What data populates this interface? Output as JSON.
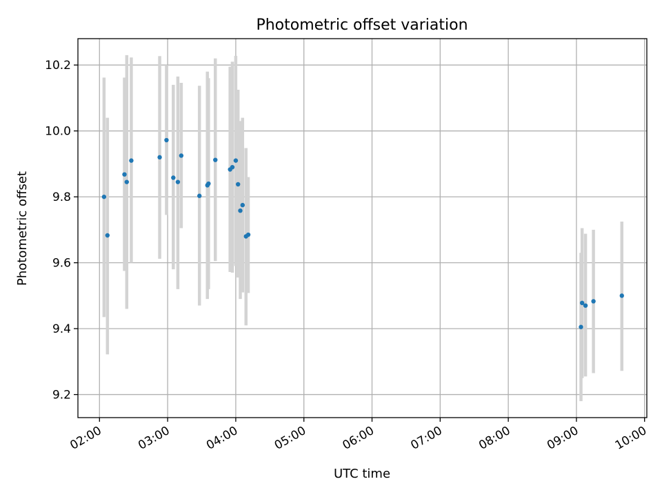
{
  "chart_data": {
    "type": "scatter",
    "title": "Photometric offset variation",
    "xlabel": "UTC time",
    "ylabel": "Photometric offset",
    "xlim": [
      "01:41",
      "10:02"
    ],
    "ylim": [
      9.13,
      10.28
    ],
    "x_ticks": [
      "02:00",
      "03:00",
      "04:00",
      "05:00",
      "06:00",
      "07:00",
      "08:00",
      "09:00",
      "10:00"
    ],
    "y_ticks": [
      "9.2",
      "9.4",
      "9.6",
      "9.8",
      "10.0",
      "10.2"
    ],
    "grid": true,
    "legend": "none",
    "marker_color": "#1f77b4",
    "errorbar_color": "#d3d3d3",
    "points": [
      {
        "t": "02:04",
        "y": 9.8,
        "lo": 9.435,
        "hi": 10.162
      },
      {
        "t": "02:07",
        "y": 9.683,
        "lo": 9.322,
        "hi": 10.04
      },
      {
        "t": "02:22",
        "y": 9.868,
        "lo": 9.575,
        "hi": 10.162
      },
      {
        "t": "02:24",
        "y": 9.845,
        "lo": 9.46,
        "hi": 10.23
      },
      {
        "t": "02:28",
        "y": 9.91,
        "lo": 9.6,
        "hi": 10.223
      },
      {
        "t": "02:53",
        "y": 9.92,
        "lo": 9.612,
        "hi": 10.227
      },
      {
        "t": "02:59",
        "y": 9.972,
        "lo": 9.745,
        "hi": 10.2
      },
      {
        "t": "03:05",
        "y": 9.858,
        "lo": 9.58,
        "hi": 10.14
      },
      {
        "t": "03:09",
        "y": 9.845,
        "lo": 9.52,
        "hi": 10.165
      },
      {
        "t": "03:12",
        "y": 9.925,
        "lo": 9.705,
        "hi": 10.146
      },
      {
        "t": "03:28",
        "y": 9.803,
        "lo": 9.47,
        "hi": 10.137
      },
      {
        "t": "03:35",
        "y": 9.835,
        "lo": 9.49,
        "hi": 10.18
      },
      {
        "t": "03:36",
        "y": 9.84,
        "lo": 9.52,
        "hi": 10.16
      },
      {
        "t": "03:42",
        "y": 9.912,
        "lo": 9.605,
        "hi": 10.22
      },
      {
        "t": "03:55",
        "y": 9.883,
        "lo": 9.572,
        "hi": 10.195
      },
      {
        "t": "03:57",
        "y": 9.89,
        "lo": 9.57,
        "hi": 10.21
      },
      {
        "t": "04:00",
        "y": 9.91,
        "lo": 9.59,
        "hi": 10.228
      },
      {
        "t": "04:02",
        "y": 9.838,
        "lo": 9.555,
        "hi": 10.125
      },
      {
        "t": "04:04",
        "y": 9.758,
        "lo": 9.49,
        "hi": 10.03
      },
      {
        "t": "04:06",
        "y": 9.775,
        "lo": 9.51,
        "hi": 10.04
      },
      {
        "t": "04:09",
        "y": 9.68,
        "lo": 9.41,
        "hi": 9.948
      },
      {
        "t": "04:11",
        "y": 9.685,
        "lo": 9.508,
        "hi": 9.86
      },
      {
        "t": "09:04",
        "y": 9.405,
        "lo": 9.18,
        "hi": 9.63
      },
      {
        "t": "09:05",
        "y": 9.478,
        "lo": 9.25,
        "hi": 9.705
      },
      {
        "t": "09:08",
        "y": 9.47,
        "lo": 9.255,
        "hi": 9.688
      },
      {
        "t": "09:15",
        "y": 9.483,
        "lo": 9.265,
        "hi": 9.7
      },
      {
        "t": "09:40",
        "y": 9.5,
        "lo": 9.272,
        "hi": 9.725
      }
    ]
  }
}
